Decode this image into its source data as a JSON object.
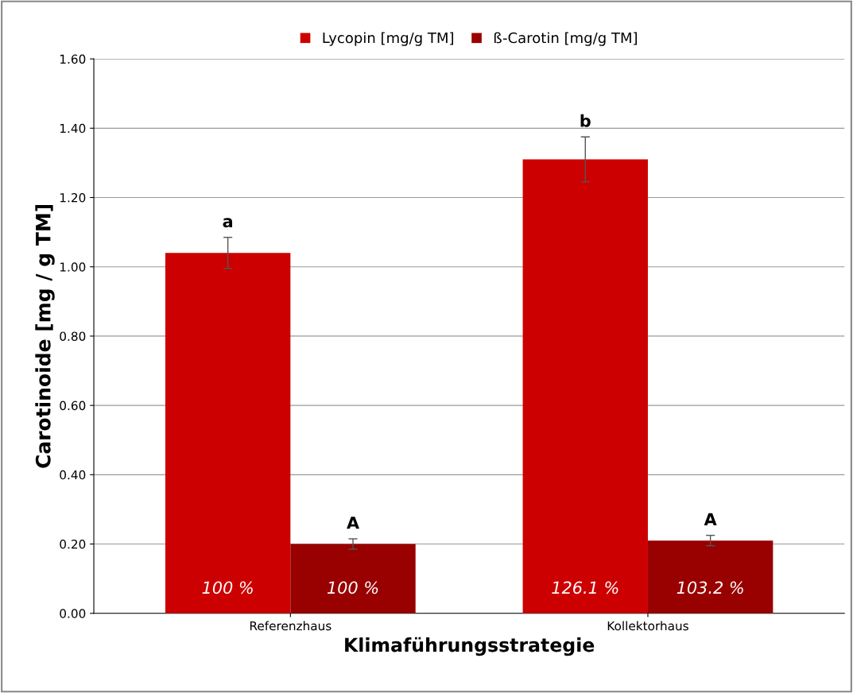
{
  "chart_data": {
    "type": "bar",
    "xlabel": "Klimaführungsstrategie",
    "ylabel": "Carotinoide [mg / g TM]",
    "categories": [
      "Referenzhaus",
      "Kollektorhaus"
    ],
    "series": [
      {
        "name": "Lycopin [mg/g TM]",
        "color": "#cc0000",
        "values": [
          1.04,
          1.31
        ],
        "errors": [
          0.045,
          0.065
        ]
      },
      {
        "name": "ß-Carotin [mg/g TM]",
        "color": "#990000",
        "values": [
          0.2,
          0.21
        ],
        "errors": [
          0.015,
          0.015
        ]
      }
    ],
    "ylim": [
      0,
      1.6
    ],
    "yticks": [
      {
        "value": 0,
        "label": "0.00"
      },
      {
        "value": 0.2,
        "label": "0.20"
      },
      {
        "value": 0.4,
        "label": "0.40"
      },
      {
        "value": 0.6,
        "label": "0.60"
      },
      {
        "value": 0.8,
        "label": "0.80"
      },
      {
        "value": 1.0,
        "label": "1.00"
      },
      {
        "value": 1.2,
        "label": "1.20"
      },
      {
        "value": 1.4,
        "label": "1.40"
      },
      {
        "value": 1.6,
        "label": "1.60"
      }
    ],
    "grid": "y",
    "legend": "top",
    "annotations": [
      "a",
      "b",
      "A",
      "A",
      "100 %",
      "126.1 %",
      "100 %",
      "103.2 %"
    ]
  }
}
